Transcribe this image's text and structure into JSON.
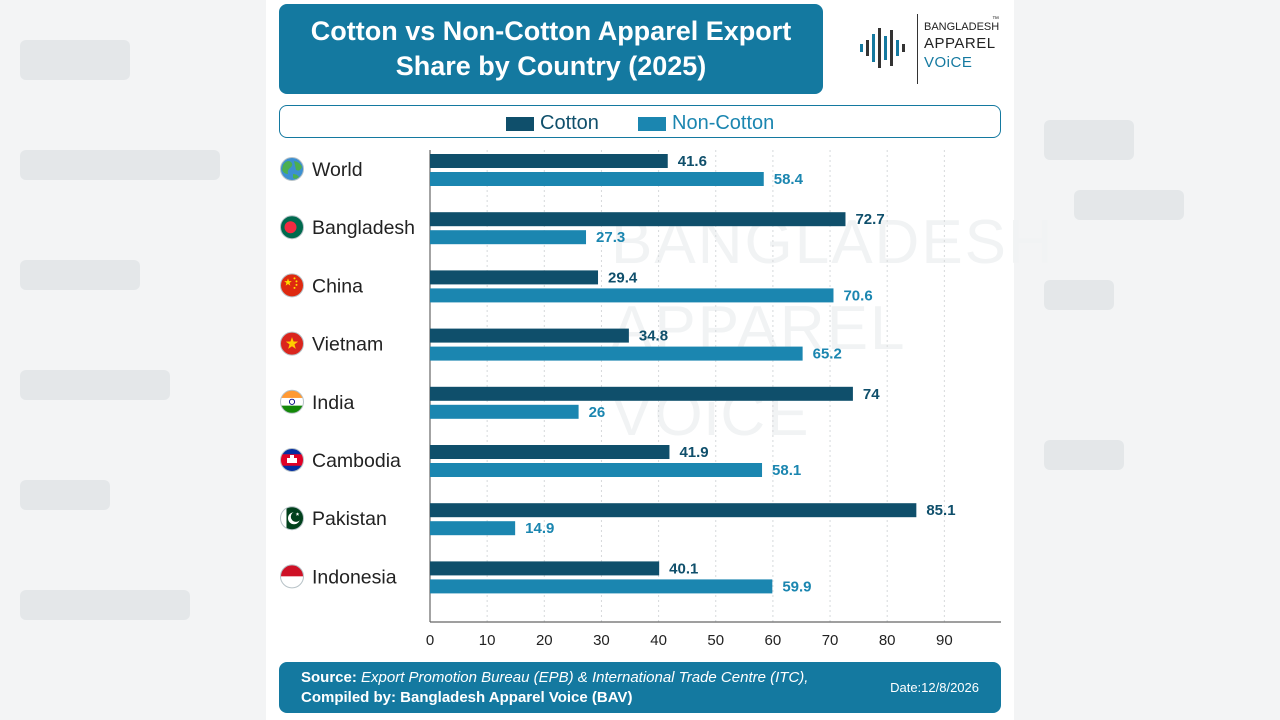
{
  "header": {
    "title_line1": "Cotton vs Non-Cotton Apparel Export",
    "title_line2": "Share by Country (2025)"
  },
  "logo": {
    "line1": "BANGLADESH",
    "line2": "APPAREL",
    "line3": "VOiCE",
    "tm": "™"
  },
  "watermark": {
    "line1": "BANGLADESH",
    "line2": "APPAREL",
    "line3": "VOiCE"
  },
  "colors": {
    "cotton": "#0f4f6b",
    "non_cotton": "#1b86b0",
    "title_bg": "#1479a0"
  },
  "chart_data": {
    "type": "bar",
    "orientation": "horizontal",
    "title": "Cotton vs Non-Cotton Apparel Export Share by Country (2025)",
    "categories": [
      "World",
      "Bangladesh",
      "China",
      "Vietnam",
      "India",
      "Cambodia",
      "Pakistan",
      "Indonesia"
    ],
    "category_icons": [
      "globe-icon",
      "bangladesh-flag-icon",
      "china-flag-icon",
      "vietnam-flag-icon",
      "india-flag-icon",
      "cambodia-flag-icon",
      "pakistan-flag-icon",
      "indonesia-flag-icon"
    ],
    "series": [
      {
        "name": "Cotton",
        "color": "#0f4f6b",
        "values": [
          41.6,
          72.7,
          29.4,
          34.8,
          74,
          41.9,
          85.1,
          40.1
        ]
      },
      {
        "name": "Non-Cotton",
        "color": "#1b86b0",
        "values": [
          58.4,
          27.3,
          70.6,
          65.2,
          26,
          58.1,
          14.9,
          59.9
        ]
      }
    ],
    "xlim": [
      0,
      100
    ],
    "xticks": [
      0,
      10,
      20,
      30,
      40,
      50,
      60,
      70,
      80,
      90
    ],
    "grid": true,
    "legend_position": "top"
  },
  "footer": {
    "source_label": "Source:",
    "source_text": " Export Promotion Bureau (EPB) & International Trade Centre (ITC),",
    "compiled_label": "Compiled by: Bangladesh Apparel Voice (BAV)",
    "date": "Date:12/8/2026"
  }
}
